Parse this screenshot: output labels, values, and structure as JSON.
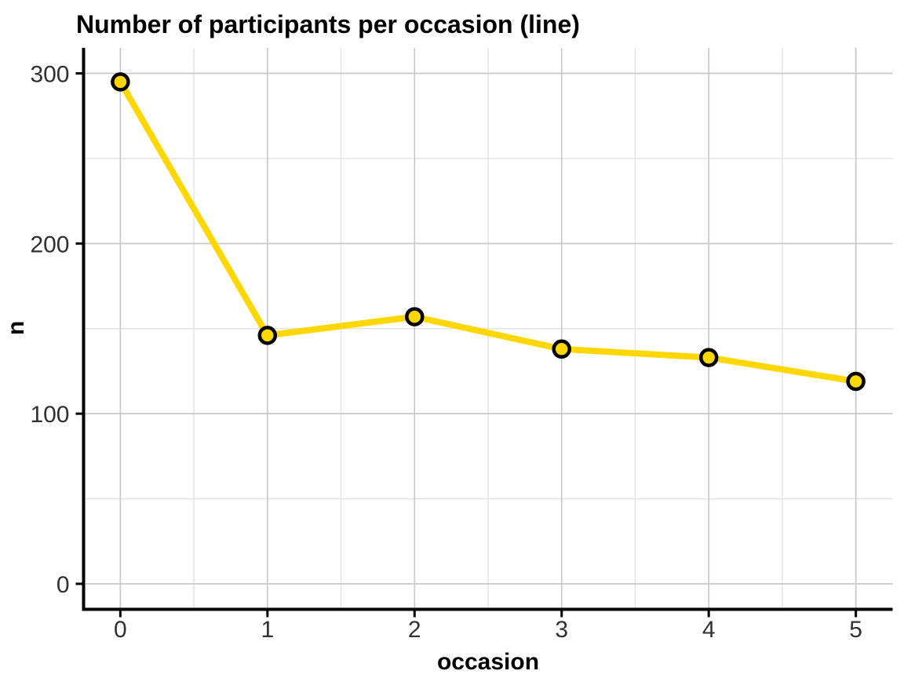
{
  "page": {
    "background": "#FFFFFF"
  },
  "chart_data": {
    "type": "line",
    "title": "Number of participants per occasion (line)",
    "xlabel": "occasion",
    "ylabel": "n",
    "x": [
      0,
      1,
      2,
      3,
      4,
      5
    ],
    "series": [
      {
        "name": "n",
        "values": [
          295,
          146,
          157,
          138,
          133,
          119
        ]
      }
    ],
    "xlim": [
      -0.25,
      5.25
    ],
    "ylim": [
      -15,
      315
    ],
    "x_ticks": [
      0,
      1,
      2,
      3,
      4,
      5
    ],
    "y_ticks": [
      0,
      100,
      200,
      300
    ],
    "x_minor_gridlines": [
      0.5,
      1.5,
      2.5,
      3.5,
      4.5
    ],
    "y_minor_gridlines": [
      50,
      150,
      250
    ],
    "grid": "major+minor",
    "legend": "none",
    "colors": {
      "line": "#FFD700",
      "point_fill": "#FFD700",
      "point_stroke": "#000000",
      "grid_major": "#C8C8C8",
      "grid_minor": "#E4E4E4",
      "axis_line": "#000000",
      "tick_label": "#303030",
      "title": "#000000"
    }
  }
}
